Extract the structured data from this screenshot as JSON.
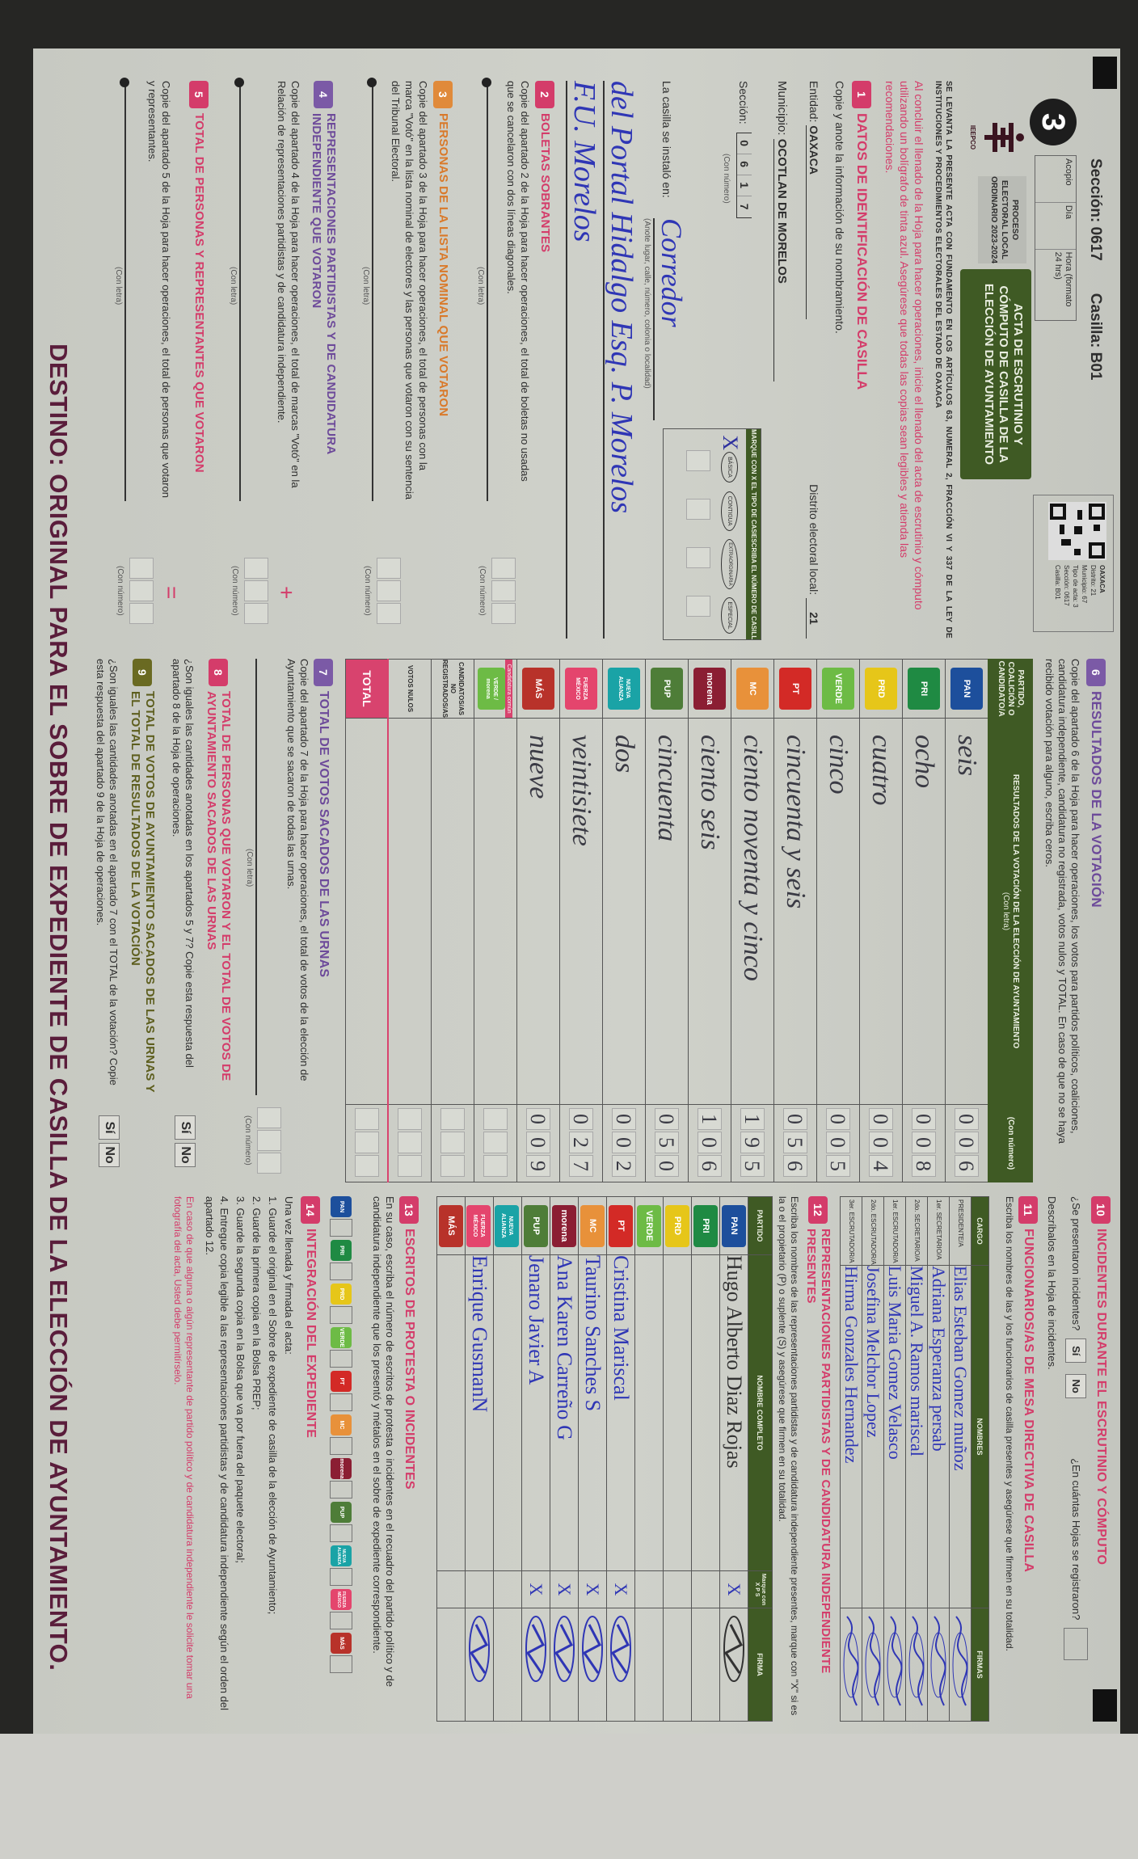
{
  "header": {
    "seccion_label": "Sección: 0617",
    "casilla_label": "Casilla: B01",
    "acta_number": "3",
    "acopio": "Acopio",
    "dia": "Día",
    "hora": "Hora (formato 24 hrs)",
    "proceso": "PROCESO ELECTORAL LOCAL ORDINARIO 2023-2024",
    "title": "ACTA DE ESCRUTINIO Y CÓMPUTO DE CASILLA DE LA ELECCIÓN DE AYUNTAMIENTO",
    "qr_lines": [
      "OAXACA",
      "Distrito: 21",
      "Municipio: 67",
      "Tipo de acta: 3",
      "Sección: 0617",
      "Casilla: B01"
    ],
    "institution_logo_text": "IEEPCO",
    "legal_text": "SE LEVANTA LA PRESENTE ACTA CON FUNDAMENTO EN LOS ARTÍCULOS 63, NUMERAL 2, FRACCIÓN VI Y 337 DE LA LEY DE INSTITUCIONES Y PROCEDIMIENTOS ELECTORALES DEL ESTADO DE OAXACA",
    "instructions": "Al concluir el llenado de la Hoja para hacer operaciones, inicie el llenado del acta de escrutinio y cómputo utilizando un bolígrafo de tinta azul. Asegúrese que todas las copias sean legibles y atienda las recomendaciones."
  },
  "sec1": {
    "badge": "1",
    "title": "DATOS DE IDENTIFICACIÓN DE CASILLA",
    "instruction": "Copie y anote la información de su nombramiento.",
    "entidad_label": "Entidad:",
    "entidad": "OAXACA",
    "distrito_label": "Distrito electoral local:",
    "distrito": "21",
    "municipio_label": "Municipio:",
    "municipio": "OCOTLAN DE MORELOS",
    "seccion_label": "Sección:",
    "seccion_digits": [
      "0",
      "6",
      "1",
      "7"
    ],
    "con_numero": "(Con número)",
    "instalo_label": "La casilla se instaló en:",
    "instalo_hint": "(Anote lugar, calle, número, colonia o localidad)",
    "instalo_lines": [
      "Corredor",
      "del Portal Hidalgo Esq. P. Morelos",
      "F.U. Morelos"
    ],
    "tipo_header": "MARQUE CON X EL TIPO DE CASILLA",
    "numero_header": "ESCRIBA EL NÚMERO DE CASILLA",
    "tipos": [
      "BÁSICA",
      "CONTIGUA",
      "EXTRAORDINARIA",
      "ESPECIAL"
    ],
    "tipo_marcado": "BÁSICA",
    "mark": "X"
  },
  "sec2": {
    "badge": "2",
    "title": "BOLETAS SOBRANTES",
    "text": "Copie del apartado 2 de la Hoja para hacer operaciones, el total de boletas no usadas que se cancelaron con dos líneas diagonales.",
    "con_letra": "(Con letra)",
    "con_numero": "(Con número)"
  },
  "sec3": {
    "badge": "3",
    "title": "PERSONAS DE LA LISTA NOMINAL QUE VOTARON",
    "text": "Copie del apartado 3 de la Hoja para hacer operaciones, el total de personas con la marca \"Votó\" en la lista nominal de electores y las personas que votaron con su sentencia del Tribunal Electoral.",
    "con_letra": "(Con letra)",
    "con_numero": "(Con número)"
  },
  "sec4": {
    "badge": "4",
    "title": "REPRESENTACIONES PARTIDISTAS Y DE CANDIDATURA INDEPENDIENTE QUE VOTARON",
    "text": "Copie del apartado 4 de la Hoja para hacer operaciones, el total de marcas \"Votó\" en la Relación de representaciones partidistas y de candidatura independiente.",
    "con_letra": "(Con letra)",
    "con_numero": "(Con número)",
    "operator": "+"
  },
  "sec5": {
    "badge": "5",
    "title": "TOTAL DE PERSONAS Y REPRESENTANTES QUE VOTARON",
    "text": "Copie del apartado 5 de la Hoja para hacer operaciones, el total de personas que votaron y representantes.",
    "con_letra": "(Con letra)",
    "con_numero": "(Con número)",
    "operator": "="
  },
  "sec6": {
    "badge": "6",
    "title": "RESULTADOS DE LA VOTACIÓN",
    "text": "Copie del apartado 6 de la Hoja para hacer operaciones, los votos para partidos políticos, coaliciones, candidatura independiente, candidatura no registrada, votos nulos y TOTAL. En caso de que no se haya recibido votación para alguno, escriba ceros.",
    "col_partido": "PARTIDO, COALICIÓN O CANDIDATO/A",
    "col_letra": "RESULTADOS DE LA VOTACIÓN DE LA ELECCIÓN DE AYUNTAMIENTO",
    "col_letra_hint": "(Con letra)",
    "col_numero": "(Con número)",
    "rows": [
      {
        "logo": "PAN",
        "color": "#1d4f9c",
        "words": "seis",
        "digits": [
          "0",
          "0",
          "6"
        ]
      },
      {
        "logo": "PRI",
        "color": "#1f8a43",
        "words": "ocho",
        "digits": [
          "0",
          "0",
          "8"
        ]
      },
      {
        "logo": "PRD",
        "color": "#e6c619",
        "words": "cuatro",
        "digits": [
          "0",
          "0",
          "4"
        ]
      },
      {
        "logo": "VERDE",
        "color": "#6dbb45",
        "words": "cinco",
        "digits": [
          "0",
          "0",
          "5"
        ]
      },
      {
        "logo": "PT",
        "color": "#d32a26",
        "words": "cincuenta y seis",
        "digits": [
          "0",
          "5",
          "6"
        ]
      },
      {
        "logo": "MC",
        "color": "#e8913a",
        "words": "ciento noventa y cinco",
        "digits": [
          "1",
          "9",
          "5"
        ]
      },
      {
        "logo": "morena",
        "color": "#8b1e33",
        "words": "ciento seis",
        "digits": [
          "1",
          "0",
          "6"
        ]
      },
      {
        "logo": "PUP",
        "color": "#4e7d38",
        "words": "cincuenta",
        "digits": [
          "0",
          "5",
          "0"
        ]
      },
      {
        "logo": "NUEVA ALIANZA",
        "color": "#1aa3a6",
        "words": "dos",
        "digits": [
          "0",
          "0",
          "2"
        ]
      },
      {
        "logo": "FUERZA MÉXICO",
        "color": "#e4456d",
        "words": "veintisiete",
        "digits": [
          "0",
          "2",
          "7"
        ]
      },
      {
        "logo": "MÁS",
        "color": "#b8322a",
        "words": "nueve",
        "digits": [
          "0",
          "0",
          "9"
        ]
      },
      {
        "logo": "VERDE / morena",
        "color": "#6dbb45",
        "caption": "Candidatura común",
        "words": "",
        "digits": [
          "",
          "",
          ""
        ]
      },
      {
        "logo": "",
        "label": "CANDIDATOS/AS NO REGISTRADOS/AS",
        "words": "",
        "digits": [
          "",
          "",
          ""
        ]
      },
      {
        "logo": "",
        "label": "VOTOS NULOS",
        "words": "",
        "digits": [
          "",
          "",
          ""
        ]
      },
      {
        "logo": "",
        "label": "TOTAL",
        "total": true,
        "words": "",
        "digits": [
          "",
          "",
          ""
        ]
      }
    ]
  },
  "sec7": {
    "badge": "7",
    "title": "TOTAL DE VOTOS SACADOS DE LAS URNAS",
    "text": "Copie del apartado 7 de la Hoja para hacer operaciones, el total de votos de la elección de Ayuntamiento que se sacaron de todas las urnas.",
    "con_letra": "(Con letra)",
    "con_numero": "(Con número)"
  },
  "sec8": {
    "badge": "8",
    "title": "TOTAL DE PERSONAS QUE VOTARON Y EL TOTAL DE VOTOS DE AYUNTAMIENTO SACADOS DE LAS URNAS",
    "text": "¿Son iguales las cantidades anotadas en los apartados 5 y 7? Copie esta respuesta del apartado 8 de la Hoja de operaciones.",
    "si": "Sí",
    "no": "No"
  },
  "sec9": {
    "badge": "9",
    "title": "TOTAL DE VOTOS DE AYUNTAMIENTO SACADOS DE LAS URNAS Y EL TOTAL DE RESULTADOS DE LA VOTACIÓN",
    "text": "¿Son iguales las cantidades anotadas en el apartado 7 con el TOTAL de la votación? Copie esta respuesta del apartado 9 de la Hoja de operaciones.",
    "si": "Sí",
    "no": "No"
  },
  "sec10": {
    "badge": "10",
    "title": "INCIDENTES DURANTE EL ESCRUTINIO Y CÓMPUTO",
    "question": "¿Se presentaron incidentes?",
    "si": "Sí",
    "no": "No",
    "hojas_question": "¿En cuántas Hojas se registraron?",
    "con_numero": "(Con número)",
    "describe": "Descríbalos en la Hoja de incidentes."
  },
  "sec11": {
    "badge": "11",
    "title": "FUNCIONARIOS/AS DE MESA DIRECTIVA DE CASILLA",
    "text": "Escriba los nombres de las y los funcionarios de casilla presentes y asegúrese que firmen en su totalidad.",
    "col_cargo": "CARGO",
    "col_nombres": "NOMBRES",
    "col_firmas": "FIRMAS",
    "rows": [
      {
        "cargo": "PRESIDENTE/A",
        "nombre": "Elias Esteban Gomez muñoz"
      },
      {
        "cargo": "1er. SECRETARIO/A",
        "nombre": "Adriana Esperanza persab"
      },
      {
        "cargo": "2do. SECRETARIO/A",
        "nombre": "Miguel A. Ramos mariscal"
      },
      {
        "cargo": "1er. ESCRUTADOR/A",
        "nombre": "Luis Maria Gomez Velasco"
      },
      {
        "cargo": "2do. ESCRUTADOR/A",
        "nombre": "Josefina Melchor Lopez"
      },
      {
        "cargo": "3er. ESCRUTADOR/A",
        "nombre": "Hirma Gonzales Hernandez"
      }
    ]
  },
  "sec12": {
    "badge": "12",
    "title": "REPRESENTACIONES PARTIDISTAS Y DE CANDIDATURA INDEPENDIENTE PRESENTES",
    "text": "Escriba los nombres de las representaciones partidistas y de candidatura independiente presentes, marque con \"X\" si es la o el propietario (P) o suplente (S) y asegúrese que firmen en su totalidad.",
    "col_partido": "PARTIDO",
    "col_nombre": "NOMBRE COMPLETO",
    "col_ps": "Marque con X P S",
    "col_firma": "FIRMA",
    "rows": [
      {
        "logo": "PAN",
        "color": "#1d4f9c",
        "nombre": "Hugo Alberto Diaz Rojas",
        "p": "X",
        "firma": true
      },
      {
        "logo": "PRI",
        "color": "#1f8a43",
        "nombre": "",
        "p": ""
      },
      {
        "logo": "PRD",
        "color": "#e6c619",
        "nombre": "",
        "p": ""
      },
      {
        "logo": "VERDE",
        "color": "#6dbb45",
        "nombre": "",
        "p": ""
      },
      {
        "logo": "PT",
        "color": "#d32a26",
        "nombre": "Cristina Mariscal",
        "p": "X",
        "firma": true
      },
      {
        "logo": "MC",
        "color": "#e8913a",
        "nombre": "Taurino Sanches S",
        "p": "X",
        "firma": true
      },
      {
        "logo": "morena",
        "color": "#8b1e33",
        "nombre": "Ana Karen Carreño G",
        "p": "X",
        "firma": true
      },
      {
        "logo": "PUP",
        "color": "#4e7d38",
        "nombre": "Jenaro Javier A",
        "p": "X",
        "firma": true
      },
      {
        "logo": "NUEVA ALIANZA",
        "color": "#1aa3a6",
        "nombre": "",
        "p": ""
      },
      {
        "logo": "FUERZA MÉXICO",
        "color": "#e4456d",
        "nombre": "Enrique GusmanN",
        "p": "",
        "firma": true
      },
      {
        "logo": "MÁS",
        "color": "#b8322a",
        "nombre": "",
        "p": ""
      }
    ]
  },
  "sec13": {
    "badge": "13",
    "title": "ESCRITOS DE PROTESTA O INCIDENTES",
    "text": "En su caso, escriba el número de escritos de protesta o incidentes en el recuadro del partido político y de candidatura independiente que los presentó y métalos en el sobre de expediente correspondiente."
  },
  "sec14": {
    "badge": "14",
    "title": "INTEGRACIÓN DEL EXPEDIENTE",
    "intro": "Una vez llenada y firmada el acta:",
    "steps": [
      "1. Guarde el original en el Sobre de expediente de casilla de la elección de Ayuntamiento;",
      "2. Guarde la primera copia en la Bolsa PREP;",
      "3. Guarde la segunda copia en la Bolsa que va por fuera del paquete electoral;",
      "4. Entregue copia legible a las representaciones partidistas y de candidatura independiente según el orden del apartado 12."
    ],
    "note": "En caso de que alguna o algún representante de partido político y de candidatura independiente le solicite tomar una fotografía del acta, Usted debe permitírselo."
  },
  "footer": {
    "destino": "DESTINO: ORIGINAL PARA EL SOBRE DE EXPEDIENTE DE CASILLA DE LA ELECCIÓN DE AYUNTAMIENTO."
  },
  "colors": {
    "green_header": "#3f5a24",
    "pink": "#d43c6a",
    "purple": "#7b5aa6",
    "ink_blue": "#2f36b5"
  }
}
